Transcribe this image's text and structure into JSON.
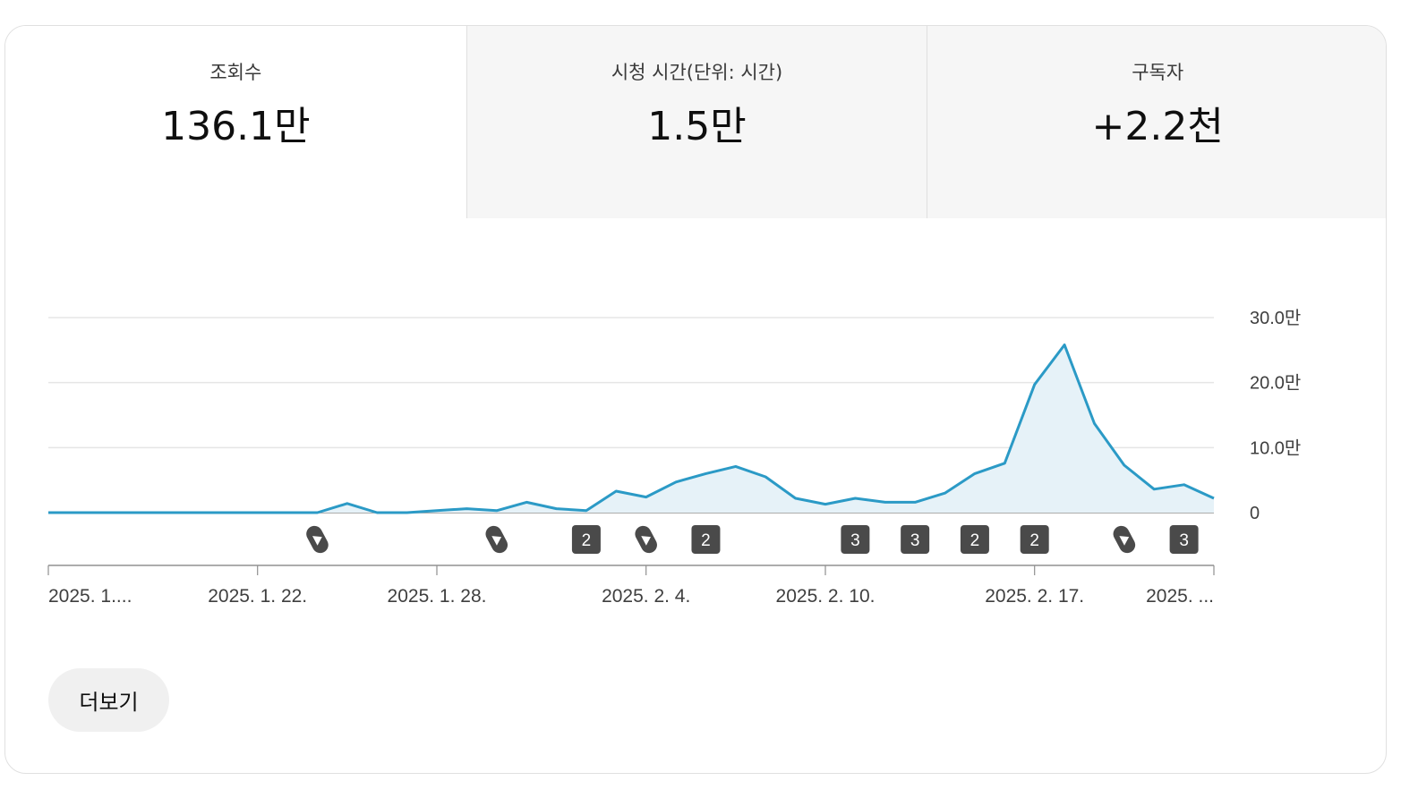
{
  "tabs": [
    {
      "label": "조회수",
      "value": "136.1만"
    },
    {
      "label": "시청 시간(단위: 시간)",
      "value": "1.5만"
    },
    {
      "label": "구독자",
      "value": "+2.2천"
    }
  ],
  "more_button": "더보기",
  "colors": {
    "line": "#2b9ac6",
    "area": "#e6f2f8",
    "grid": "#e5e5e5",
    "axis": "#909090",
    "marker": "#4a4a4a"
  },
  "chart_data": {
    "type": "area",
    "y_tick_labels": [
      "30.0만",
      "20.0만",
      "10.0만",
      "0"
    ],
    "y_ticks": [
      300000,
      200000,
      100000,
      0
    ],
    "ylim": [
      0,
      300000
    ],
    "x_tick_labels": [
      "2025. 1....",
      "2025. 1. 22.",
      "2025. 1. 28.",
      "2025. 2. 4.",
      "2025. 2. 10.",
      "2025. 2. 17.",
      "2025. ..."
    ],
    "x_tick_indices": [
      0,
      7,
      13,
      20,
      26,
      33,
      39
    ],
    "values": [
      0,
      0,
      0,
      0,
      0,
      0,
      0,
      0,
      0,
      0,
      14000,
      0,
      0,
      3000,
      6000,
      3000,
      16000,
      6000,
      3000,
      33000,
      24000,
      47000,
      60000,
      71000,
      55000,
      22000,
      13000,
      22000,
      16000,
      16000,
      30000,
      60000,
      76000,
      197000,
      258000,
      137000,
      73000,
      36000,
      43000,
      22000
    ],
    "upload_markers": [
      {
        "index": 9,
        "type": "shorts-icon",
        "count": ""
      },
      {
        "index": 15,
        "type": "shorts-icon",
        "count": ""
      },
      {
        "index": 18,
        "type": "count",
        "count": "2"
      },
      {
        "index": 20,
        "type": "shorts-icon",
        "count": ""
      },
      {
        "index": 22,
        "type": "count",
        "count": "2"
      },
      {
        "index": 27,
        "type": "count",
        "count": "3"
      },
      {
        "index": 29,
        "type": "count",
        "count": "3"
      },
      {
        "index": 31,
        "type": "count",
        "count": "2"
      },
      {
        "index": 33,
        "type": "count",
        "count": "2"
      },
      {
        "index": 36,
        "type": "shorts-icon",
        "count": ""
      },
      {
        "index": 38,
        "type": "count",
        "count": "3"
      }
    ]
  }
}
